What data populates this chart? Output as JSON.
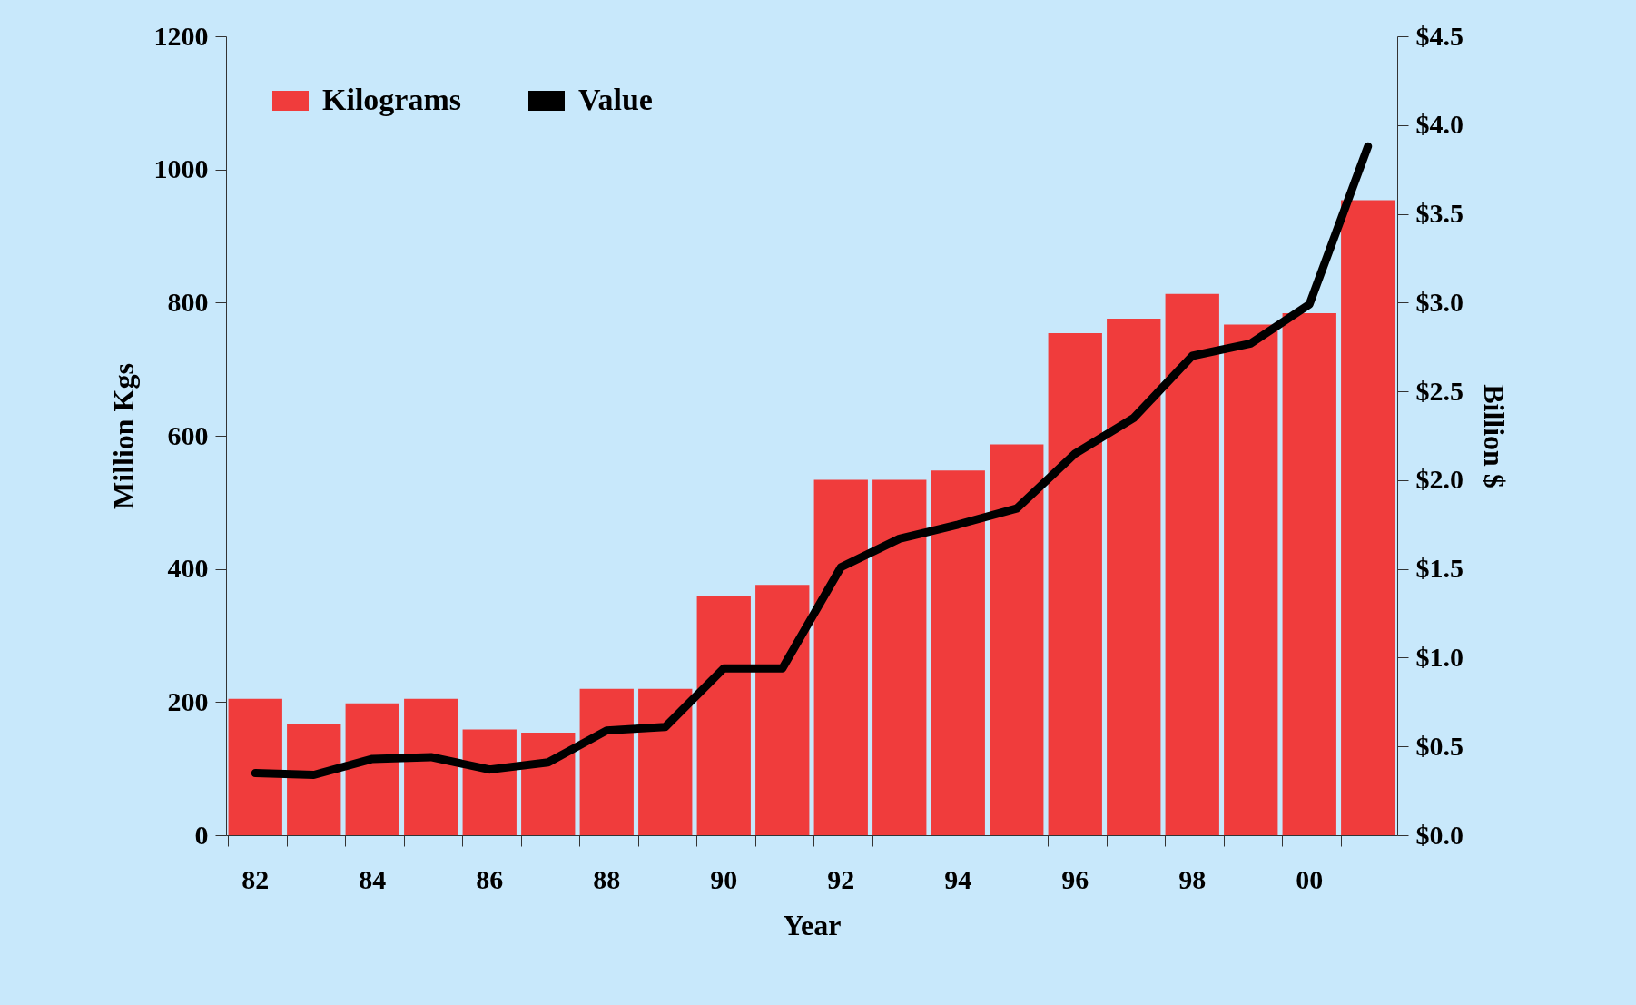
{
  "chart_data": {
    "type": "bar",
    "xlabel": "Year",
    "ylabel": "Million Kgs",
    "y2label": "Billion $",
    "categories": [
      "82",
      null,
      "84",
      null,
      "86",
      null,
      "88",
      null,
      "90",
      null,
      "92",
      null,
      "94",
      null,
      "96",
      null,
      "98",
      null,
      "00",
      null
    ],
    "series": [
      {
        "name": "Kilograms",
        "color": "#f03c3c",
        "values": [
          205,
          167,
          198,
          205,
          159,
          154,
          220,
          220,
          359,
          376,
          534,
          534,
          548,
          587,
          754,
          776,
          813,
          767,
          784,
          954
        ]
      },
      {
        "name": "Value",
        "type": "line",
        "axis": "y2",
        "color": "#000000",
        "values": [
          0.35,
          0.34,
          0.43,
          0.44,
          0.37,
          0.41,
          0.59,
          0.61,
          0.94,
          0.94,
          1.51,
          1.67,
          1.75,
          1.84,
          2.15,
          2.35,
          2.7,
          2.77,
          2.99,
          3.88
        ]
      }
    ],
    "ylim": [
      0,
      1200
    ],
    "yticks": [
      0,
      200,
      400,
      600,
      800,
      1000,
      1200
    ],
    "y2lim": [
      0,
      4.5
    ],
    "y2ticks": [
      {
        "value": 0,
        "label": "$0.0"
      },
      {
        "value": 0.5,
        "label": "$0.5"
      },
      {
        "value": 1,
        "label": "$1.0"
      },
      {
        "value": 1.5,
        "label": "$1.5"
      },
      {
        "value": 2,
        "label": "$2.0"
      },
      {
        "value": 2.5,
        "label": "$2.5"
      },
      {
        "value": 3,
        "label": "$3.0"
      },
      {
        "value": 3.5,
        "label": "$3.5"
      },
      {
        "value": 4,
        "label": "$4.0"
      },
      {
        "value": 4.5,
        "label": "$4.5"
      }
    ],
    "legend": "top left",
    "grid": false
  }
}
